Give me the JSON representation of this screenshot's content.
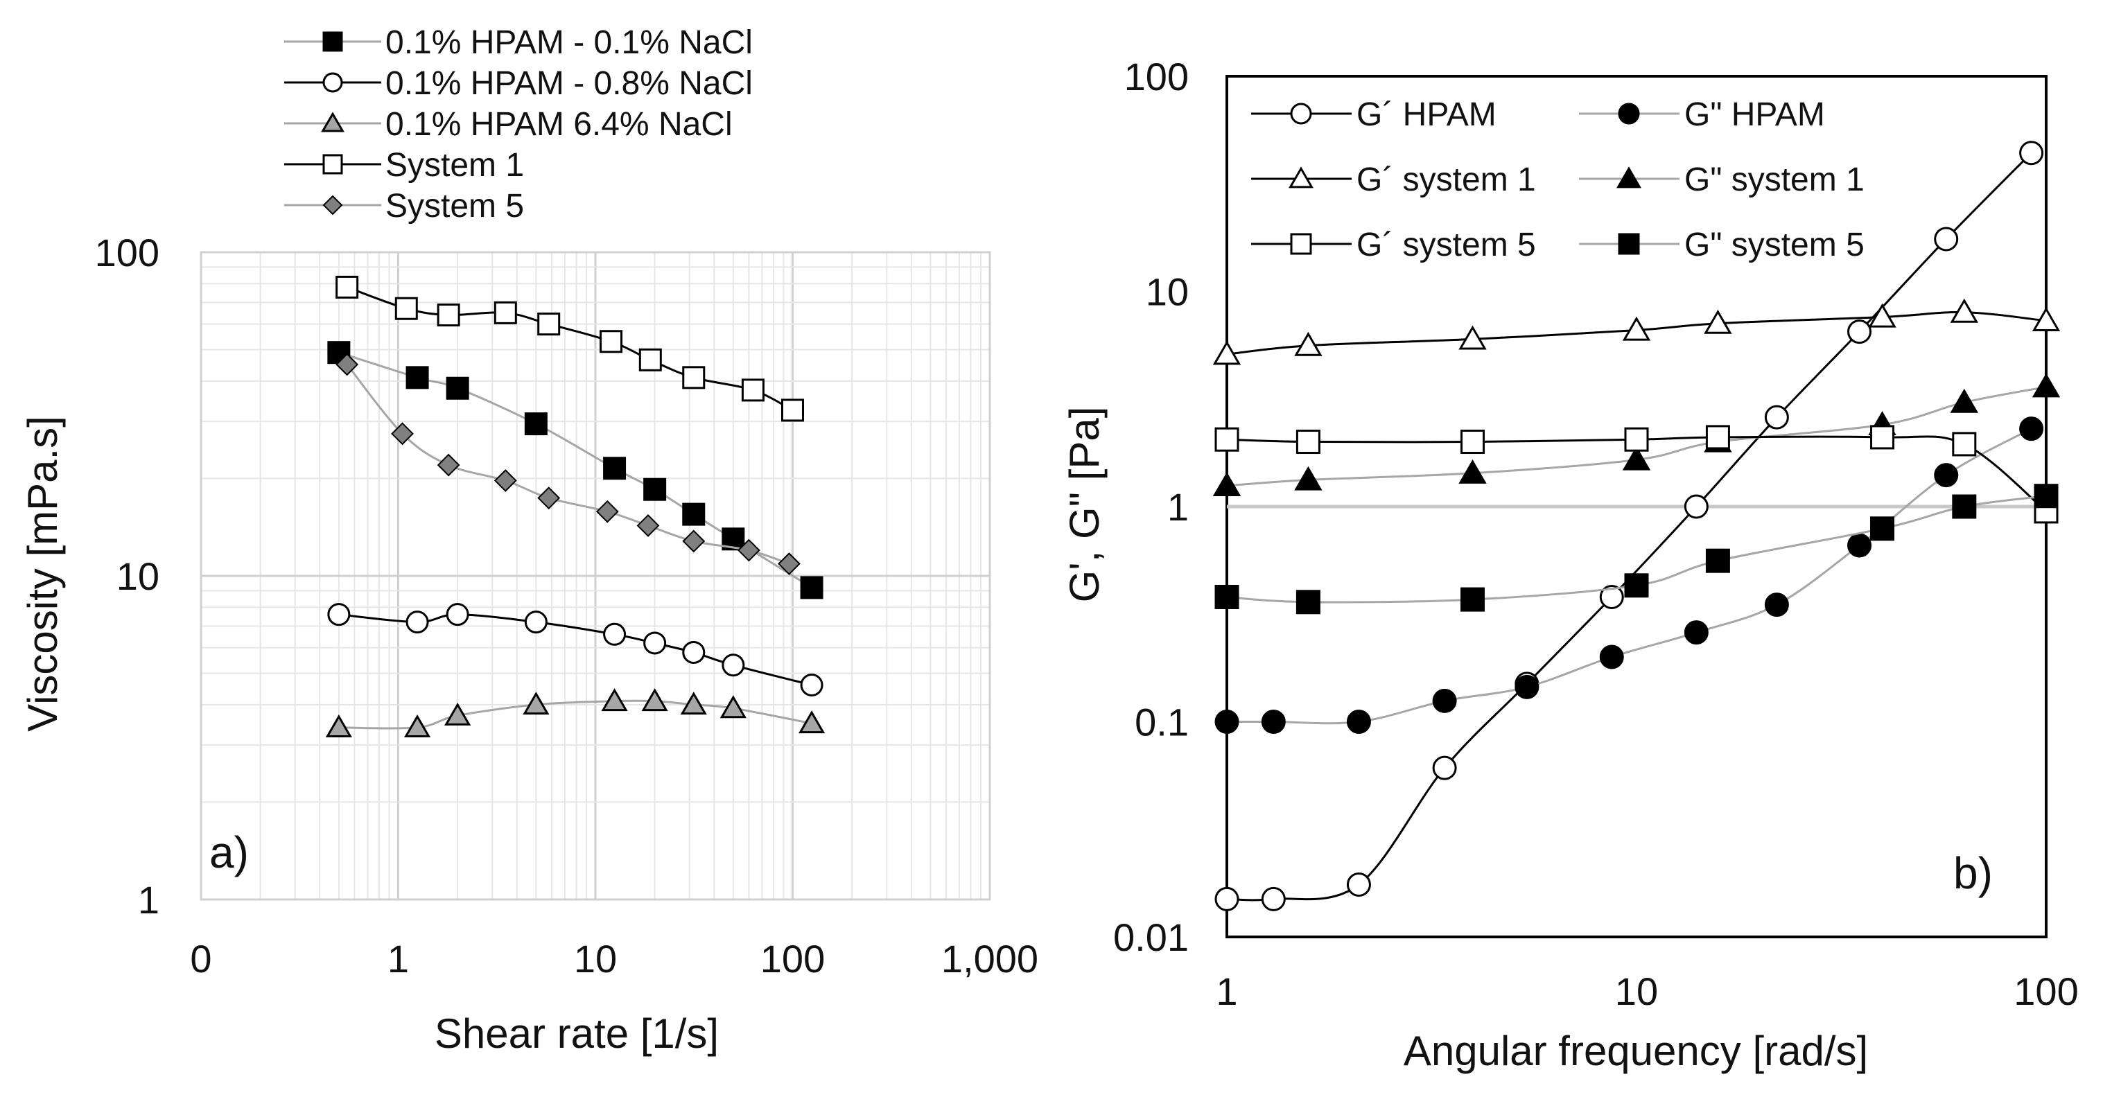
{
  "chart_data": [
    {
      "id": "a",
      "type": "line",
      "panel_label": "a)",
      "xlabel": "Shear rate [1/s]",
      "ylabel": "Viscosity  [mPa.s]",
      "x_scale": "log",
      "y_scale": "log",
      "xlim": [
        0.1,
        1000
      ],
      "ylim": [
        1,
        100
      ],
      "x_ticks": [
        {
          "v": 0.1,
          "label": "0"
        },
        {
          "v": 1,
          "label": "1"
        },
        {
          "v": 10,
          "label": "10"
        },
        {
          "v": 100,
          "label": "100"
        },
        {
          "v": 1000,
          "label": "1,000"
        }
      ],
      "y_ticks": [
        {
          "v": 1,
          "label": "1"
        },
        {
          "v": 10,
          "label": "10"
        },
        {
          "v": 100,
          "label": "100"
        }
      ],
      "grid": true,
      "legend_position": "top",
      "series": [
        {
          "name": "0.1% HPAM  - 0.1% NaCl",
          "marker": "square",
          "fill": "#000000",
          "line_color": "#a6a6a6",
          "x": [
            0.5,
            1.25,
            2.0,
            5.0,
            12.5,
            20,
            31.5,
            50,
            125
          ],
          "y": [
            49,
            41,
            38,
            29.5,
            21.5,
            18.5,
            15.5,
            13,
            9.2
          ]
        },
        {
          "name": "0.1% HPAM - 0.8% NaCl",
          "marker": "circle",
          "fill": "#ffffff",
          "line_color": "#000000",
          "x": [
            0.5,
            1.25,
            2.0,
            5.0,
            12.5,
            20,
            31.5,
            50,
            125
          ],
          "y": [
            7.6,
            7.2,
            7.6,
            7.2,
            6.6,
            6.2,
            5.8,
            5.3,
            4.6
          ]
        },
        {
          "name": "0.1% HPAM 6.4% NaCl",
          "marker": "triangle",
          "fill": "#a6a6a6",
          "line_color": "#a6a6a6",
          "x": [
            0.5,
            1.25,
            2.0,
            5.0,
            12.5,
            20,
            31.5,
            50,
            125
          ],
          "y": [
            3.4,
            3.4,
            3.7,
            4.0,
            4.1,
            4.1,
            4.0,
            3.9,
            3.5
          ]
        },
        {
          "name": "System 1",
          "marker": "square",
          "fill": "#ffffff",
          "line_color": "#000000",
          "x": [
            0.55,
            1.1,
            1.8,
            3.5,
            5.8,
            12,
            19,
            31.5,
            63,
            100
          ],
          "y": [
            78,
            67,
            64,
            65,
            60,
            53,
            46.5,
            41,
            37.5,
            32.5
          ]
        },
        {
          "name": "System 5",
          "marker": "diamond",
          "fill": "#808080",
          "line_color": "#a6a6a6",
          "x": [
            0.55,
            1.05,
            1.8,
            3.5,
            5.8,
            11.5,
            18.5,
            31.5,
            60,
            96
          ],
          "y": [
            45,
            27.5,
            22,
            19.7,
            17.4,
            15.8,
            14.3,
            12.8,
            12,
            10.9
          ]
        }
      ]
    },
    {
      "id": "b",
      "type": "line",
      "panel_label": "b)",
      "xlabel": "Angular frequency [rad/s]",
      "ylabel": "G', G\" [Pa]",
      "x_scale": "log",
      "y_scale": "log",
      "xlim": [
        1,
        100
      ],
      "ylim": [
        0.01,
        100
      ],
      "x_ticks": [
        {
          "v": 1,
          "label": "1"
        },
        {
          "v": 10,
          "label": "10"
        },
        {
          "v": 100,
          "label": "100"
        }
      ],
      "y_ticks": [
        {
          "v": 0.01,
          "label": "0.01"
        },
        {
          "v": 0.1,
          "label": "0.1"
        },
        {
          "v": 1,
          "label": "1"
        },
        {
          "v": 10,
          "label": "10"
        },
        {
          "v": 100,
          "label": "100"
        }
      ],
      "grid": false,
      "reference_lines": [
        {
          "axis": "y",
          "value": 1
        }
      ],
      "legend_position": "top-left",
      "series": [
        {
          "name": "G´ HPAM",
          "marker": "circle",
          "fill": "#ffffff",
          "line_color": "#000000",
          "x": [
            1.0,
            1.3,
            2.1,
            3.4,
            5.4,
            8.7,
            14,
            22,
            35,
            57,
            92
          ],
          "y": [
            0.015,
            0.015,
            0.0175,
            0.061,
            0.15,
            0.38,
            1.0,
            2.6,
            6.5,
            17.5,
            44
          ]
        },
        {
          "name": "G\" HPAM",
          "marker": "circle",
          "fill": "#000000",
          "line_color": "#a6a6a6",
          "x": [
            1.0,
            1.3,
            2.1,
            3.4,
            5.4,
            8.7,
            14,
            22,
            35,
            57,
            92
          ],
          "y": [
            0.1,
            0.1,
            0.1,
            0.125,
            0.145,
            0.2,
            0.26,
            0.35,
            0.66,
            1.4,
            2.3
          ]
        },
        {
          "name": "G´ system 1",
          "marker": "triangle",
          "fill": "#ffffff",
          "line_color": "#000000",
          "x": [
            1.0,
            1.58,
            3.98,
            10,
            15.8,
            39.8,
            63.1,
            100
          ],
          "y": [
            5.1,
            5.6,
            6.0,
            6.6,
            7.1,
            7.6,
            8.0,
            7.3
          ]
        },
        {
          "name": "G\" system 1",
          "marker": "triangle",
          "fill": "#000000",
          "line_color": "#a6a6a6",
          "x": [
            1.0,
            1.58,
            3.98,
            10,
            15.8,
            39.8,
            63.1,
            100
          ],
          "y": [
            1.25,
            1.33,
            1.43,
            1.65,
            2.0,
            2.4,
            3.05,
            3.6
          ]
        },
        {
          "name": "G´ system 5",
          "marker": "square",
          "fill": "#ffffff",
          "line_color": "#000000",
          "x": [
            1.0,
            1.58,
            3.98,
            10,
            15.8,
            39.8,
            63.1,
            100
          ],
          "y": [
            2.05,
            2.0,
            2.0,
            2.05,
            2.1,
            2.1,
            1.95,
            0.95
          ]
        },
        {
          "name": "G\" system 5",
          "marker": "square",
          "fill": "#000000",
          "line_color": "#a6a6a6",
          "x": [
            1.0,
            1.58,
            3.98,
            10,
            15.8,
            39.8,
            63.1,
            100
          ],
          "y": [
            0.38,
            0.36,
            0.37,
            0.43,
            0.56,
            0.79,
            1.0,
            1.12
          ]
        }
      ]
    }
  ]
}
